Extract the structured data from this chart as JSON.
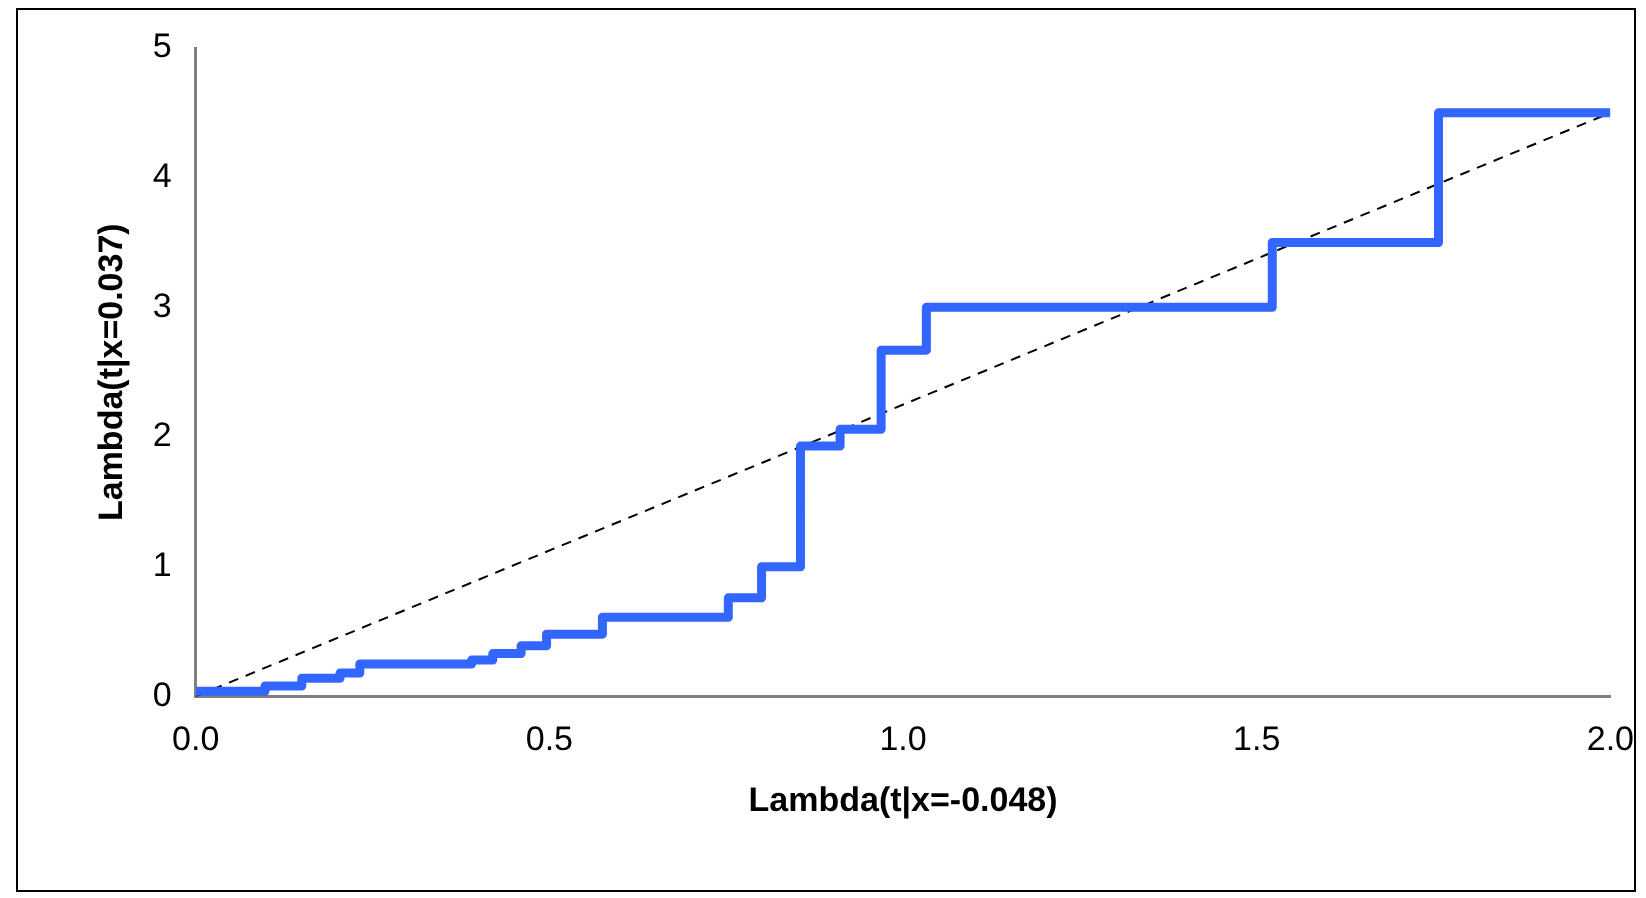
{
  "chart_data": {
    "type": "step",
    "xlabel": "Lambda(t|x=-0.048)",
    "ylabel": "Lambda(t|x=0.037)",
    "series": [
      {
        "color": "#3366ff",
        "x": [
          0,
          0.098,
          0.15,
          0.204,
          0.232,
          0.39,
          0.42,
          0.46,
          0.496,
          0.575,
          0.753,
          0.8,
          0.855,
          0.911,
          0.969,
          1.033,
          1.522,
          1.757,
          2.0
        ],
        "values": [
          0.04,
          0.08,
          0.14,
          0.18,
          0.25,
          0.28,
          0.33,
          0.39,
          0.48,
          0.61,
          0.76,
          1.0,
          1.93,
          2.06,
          2.67,
          3.0,
          3.5,
          4.5,
          4.5
        ]
      },
      {
        "type": "line",
        "color": "#000000",
        "line_style": "dashed",
        "x": [
          0,
          2.0
        ],
        "values": [
          0,
          4.5
        ]
      }
    ],
    "xlim": [
      0,
      2.0
    ],
    "xticks": [
      {
        "value": 0,
        "label": "0.0"
      },
      {
        "value": 0.5,
        "label": "0.5"
      },
      {
        "value": 1,
        "label": "1.0"
      },
      {
        "value": 1.5,
        "label": "1.5"
      },
      {
        "value": 2,
        "label": "2.0"
      }
    ],
    "ylim": [
      0,
      5
    ],
    "yticks": [
      0,
      1,
      2,
      3,
      4,
      5
    ],
    "grid": false,
    "legend": false,
    "marker": "none"
  }
}
